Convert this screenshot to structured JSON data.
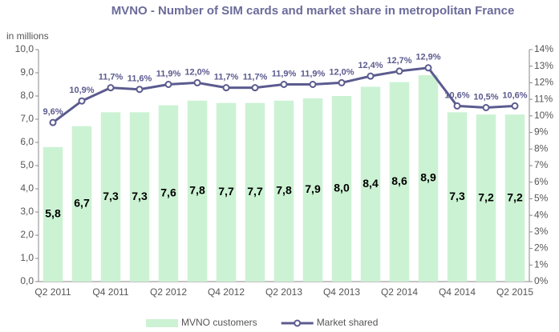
{
  "chart_data": {
    "type": "bar-line",
    "title": "MVNO - Number of SIM cards and market share  in metropolitan France",
    "y_label": "in millions",
    "categories": [
      "Q2 2011",
      null,
      "Q4 2011",
      null,
      "Q2 2012",
      null,
      "Q4 2012",
      null,
      "Q2 2013",
      null,
      "Q4 2013",
      null,
      "Q2 2014",
      null,
      "Q4 2014",
      null,
      "Q2 2015"
    ],
    "series": [
      {
        "name": "MVNO customers",
        "color": "#ccf2d4",
        "type": "bar",
        "values": [
          5.8,
          6.7,
          7.3,
          7.3,
          7.6,
          7.8,
          7.7,
          7.7,
          7.8,
          7.9,
          8.0,
          8.4,
          8.6,
          8.9,
          7.3,
          7.2,
          7.2
        ],
        "value_labels": [
          "5,8",
          "6,7",
          "7,3",
          "7,3",
          "7,6",
          "7,8",
          "7,7",
          "7,7",
          "7,8",
          "7,9",
          "8,0",
          "8,4",
          "8,6",
          "8,9",
          "7,3",
          "7,2",
          "7,2"
        ]
      },
      {
        "name": "Market shared",
        "color": "#5b5b8f",
        "type": "line",
        "axis": "y2",
        "values": [
          9.6,
          10.9,
          11.7,
          11.6,
          11.9,
          12.0,
          11.7,
          11.7,
          11.9,
          11.9,
          12.0,
          12.4,
          12.7,
          12.9,
          10.6,
          10.5,
          10.6
        ],
        "value_labels": [
          "9,6%",
          "10,9%",
          "11,7%",
          "11,6%",
          "11,9%",
          "12,0%",
          "11,7%",
          "11,7%",
          "11,9%",
          "11,9%",
          "12,0%",
          "12,4%",
          "12,7%",
          "12,9%",
          "10,6%",
          "10,5%",
          "10,6%"
        ]
      }
    ],
    "ylim": [
      0,
      10
    ],
    "yticks": [
      {
        "value": 0,
        "label": "0,0"
      },
      {
        "value": 1,
        "label": "1,0"
      },
      {
        "value": 2,
        "label": "2,0"
      },
      {
        "value": 3,
        "label": "3,0"
      },
      {
        "value": 4,
        "label": "4,0"
      },
      {
        "value": 5,
        "label": "5,0"
      },
      {
        "value": 6,
        "label": "6,0"
      },
      {
        "value": 7,
        "label": "7,0"
      },
      {
        "value": 8,
        "label": "8,0"
      },
      {
        "value": 9,
        "label": "9,0"
      },
      {
        "value": 10,
        "label": "10,0"
      }
    ],
    "y2lim": [
      0,
      14
    ],
    "y2ticks": [
      {
        "value": 0,
        "label": "0%"
      },
      {
        "value": 1,
        "label": "1%"
      },
      {
        "value": 2,
        "label": "2%"
      },
      {
        "value": 3,
        "label": "3%"
      },
      {
        "value": 4,
        "label": "4%"
      },
      {
        "value": 5,
        "label": "5%"
      },
      {
        "value": 6,
        "label": "6%"
      },
      {
        "value": 7,
        "label": "7%"
      },
      {
        "value": 8,
        "label": "8%"
      },
      {
        "value": 9,
        "label": "9%"
      },
      {
        "value": 10,
        "label": "10%"
      },
      {
        "value": 11,
        "label": "11%"
      },
      {
        "value": 12,
        "label": "12%"
      },
      {
        "value": 13,
        "label": "13%"
      },
      {
        "value": 14,
        "label": "14%"
      }
    ],
    "legend": "bottom"
  }
}
